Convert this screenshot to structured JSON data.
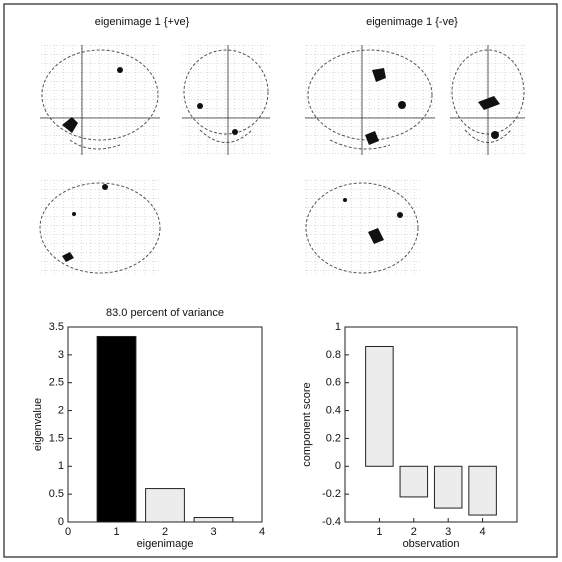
{
  "image_panels": [
    {
      "title": "eigenimage 1 {+ve}"
    },
    {
      "title": "eigenimage 1 {-ve}"
    }
  ],
  "chart_data": [
    {
      "type": "bar",
      "title": "83.0 percent of variance",
      "x_label": "eigenimage",
      "y_label": "eigenvalue",
      "x": [
        1,
        2,
        3
      ],
      "values": [
        3.33,
        0.6,
        0.08
      ],
      "colors": [
        "#000000",
        "#ececec",
        "#ececec"
      ],
      "xlim": [
        0,
        4
      ],
      "xticks": [
        0,
        1,
        2,
        3,
        4
      ],
      "ylim": [
        0,
        3.5
      ],
      "yticks": [
        0,
        0.5,
        1,
        1.5,
        2,
        2.5,
        3,
        3.5
      ]
    },
    {
      "type": "bar",
      "x_label": "observation",
      "y_label": "component score",
      "x": [
        1,
        2,
        3,
        4
      ],
      "values": [
        0.86,
        -0.22,
        -0.3,
        -0.35
      ],
      "colors": [
        "#ececec",
        "#ececec",
        "#ececec",
        "#ececec"
      ],
      "xlim": [
        0,
        5
      ],
      "xticks": [
        1,
        2,
        3,
        4
      ],
      "ylim": [
        -0.4,
        1
      ],
      "yticks": [
        -0.4,
        -0.2,
        0,
        0.2,
        0.4,
        0.6,
        0.8,
        1
      ]
    }
  ]
}
